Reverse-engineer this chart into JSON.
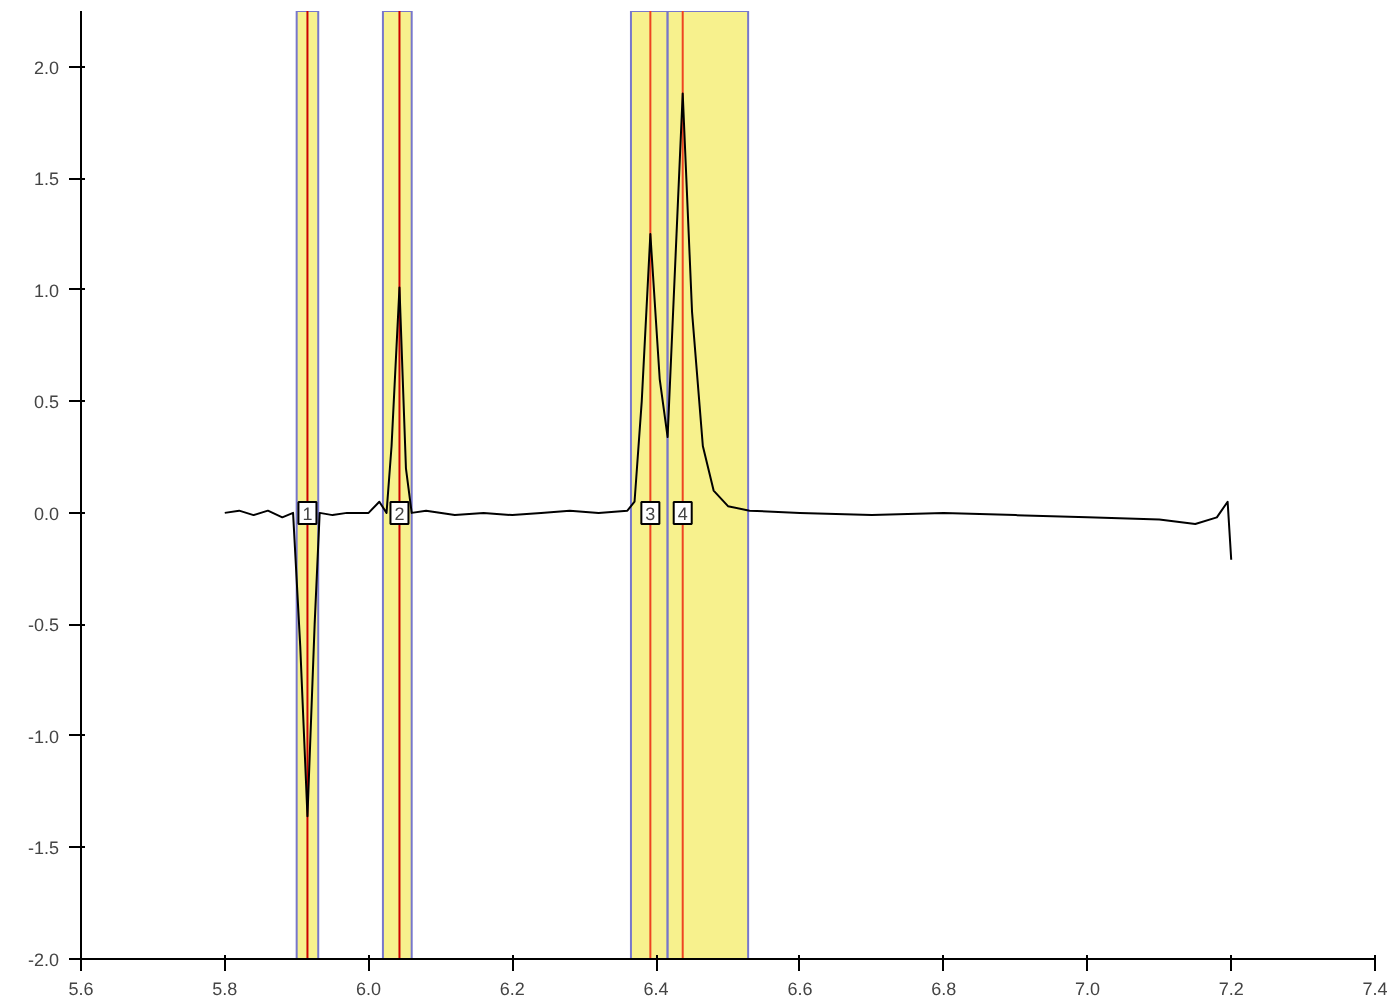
{
  "chart_data": {
    "type": "line",
    "x": [
      5.8,
      5.82,
      5.84,
      5.86,
      5.88,
      5.895,
      5.905,
      5.915,
      5.925,
      5.932,
      5.95,
      5.97,
      6.0,
      6.015,
      6.025,
      6.032,
      6.043,
      6.052,
      6.06,
      6.08,
      6.12,
      6.16,
      6.2,
      6.24,
      6.28,
      6.32,
      6.36,
      6.37,
      6.38,
      6.392,
      6.405,
      6.416,
      6.425,
      6.437,
      6.45,
      6.465,
      6.48,
      6.5,
      6.53,
      6.6,
      6.7,
      6.8,
      6.9,
      7.0,
      7.1,
      7.15,
      7.18,
      7.195,
      7.2
    ],
    "series": [
      {
        "color": "#000000",
        "values": [
          0.0,
          0.01,
          -0.01,
          0.01,
          -0.02,
          0.0,
          -0.6,
          -1.36,
          -0.5,
          0.0,
          -0.01,
          0.0,
          0.0,
          0.05,
          0.0,
          0.3,
          1.01,
          0.2,
          0.0,
          0.01,
          -0.01,
          0.0,
          -0.01,
          0.0,
          0.01,
          0.0,
          0.01,
          0.05,
          0.5,
          1.25,
          0.6,
          0.34,
          1.0,
          1.88,
          0.9,
          0.3,
          0.1,
          0.03,
          0.01,
          0.0,
          -0.01,
          0.0,
          -0.01,
          -0.02,
          -0.03,
          -0.05,
          -0.02,
          0.05,
          -0.21
        ]
      }
    ],
    "xlim": [
      5.6,
      7.4
    ],
    "xticks": [
      {
        "value": 5.6,
        "label": "5.6"
      },
      {
        "value": 5.8,
        "label": "5.8"
      },
      {
        "value": 6.0,
        "label": "6.0"
      },
      {
        "value": 6.2,
        "label": "6.2"
      },
      {
        "value": 6.4,
        "label": "6.4"
      },
      {
        "value": 6.6,
        "label": "6.6"
      },
      {
        "value": 6.8,
        "label": "6.8"
      },
      {
        "value": 7.0,
        "label": "7.0"
      },
      {
        "value": 7.2,
        "label": "7.2"
      },
      {
        "value": 7.4,
        "label": "7.4"
      }
    ],
    "ylim": [
      -2.0,
      2.25
    ],
    "yticks": [
      {
        "value": -2.0,
        "label": "-2.0"
      },
      {
        "value": -1.5,
        "label": "-1.5"
      },
      {
        "value": -1.0,
        "label": "-1.0"
      },
      {
        "value": -0.5,
        "label": "-0.5"
      },
      {
        "value": 0.0,
        "label": "0.0"
      },
      {
        "value": 0.5,
        "label": "0.5"
      },
      {
        "value": 1.0,
        "label": "1.0"
      },
      {
        "value": 1.5,
        "label": "1.5"
      },
      {
        "value": 2.0,
        "label": "2.0"
      }
    ],
    "bands": [
      {
        "axis": "x",
        "from": 5.9,
        "to": 5.93,
        "color": "#f5ee70"
      },
      {
        "axis": "x",
        "from": 6.02,
        "to": 6.06,
        "color": "#f5ee70"
      },
      {
        "axis": "x",
        "from": 6.365,
        "to": 6.416,
        "color": "#f5ee70"
      },
      {
        "axis": "x",
        "from": 6.416,
        "to": 6.528,
        "color": "#f5ee70"
      }
    ],
    "ref_lines": [
      {
        "axis": "x",
        "value": 5.915,
        "color": "#cc0000"
      },
      {
        "axis": "x",
        "value": 6.043,
        "color": "#cc0000"
      },
      {
        "axis": "x",
        "value": 6.392,
        "color": "#ee4422"
      },
      {
        "axis": "x",
        "value": 6.437,
        "color": "#ee4422"
      }
    ],
    "annotations": [
      {
        "text": "1",
        "x": 5.915,
        "y": 0.0
      },
      {
        "text": "2",
        "x": 6.043,
        "y": 0.0
      },
      {
        "text": "3",
        "x": 6.392,
        "y": 0.0
      },
      {
        "text": "4",
        "x": 6.437,
        "y": 0.0
      }
    ],
    "grid": false
  }
}
